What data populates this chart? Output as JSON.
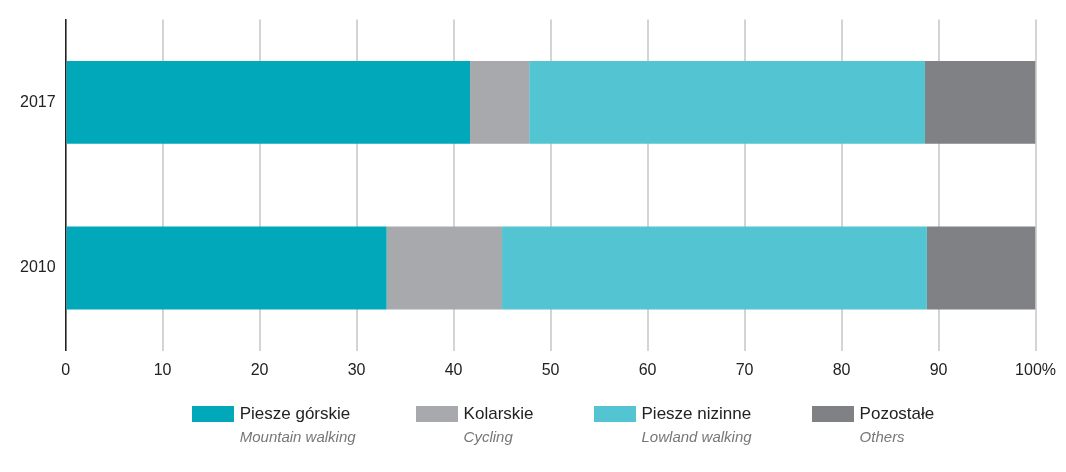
{
  "chart_data": {
    "type": "bar",
    "orientation": "horizontal",
    "stacked": true,
    "categories": [
      "2017",
      "2010"
    ],
    "series": [
      {
        "name": "Piesze górskie\nMountain walking",
        "color": "#00a8b9",
        "values": [
          41.7,
          33.1
        ]
      },
      {
        "name": "Kolarskie\nCycling",
        "color": "#a8a9ad",
        "values": [
          6.1,
          11.9
        ]
      },
      {
        "name": "Piesze nizinne\nLowland walking",
        "color": "#53c4d2",
        "values": [
          40.8,
          43.8
        ]
      },
      {
        "name": "Pozostałe\nOthers",
        "color": "#808185",
        "values": [
          11.4,
          11.2
        ]
      }
    ],
    "xlim": [
      0,
      100
    ],
    "xticks": [
      0,
      10,
      20,
      30,
      40,
      50,
      60,
      70,
      80,
      90,
      {
        "value": 100,
        "label": "100%"
      }
    ],
    "grid": "x",
    "legend": "bottom"
  }
}
